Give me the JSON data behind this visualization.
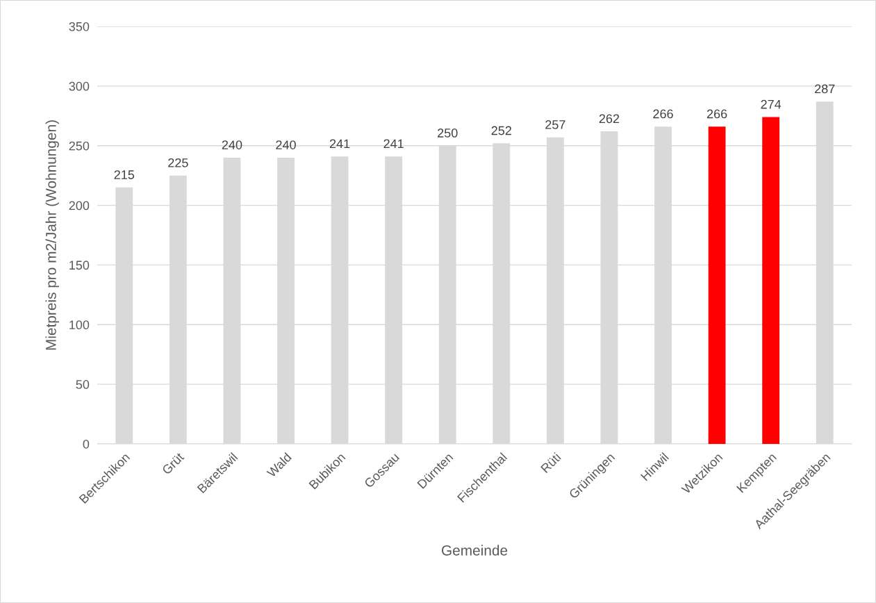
{
  "chart_data": {
    "type": "bar",
    "xlabel": "Gemeinde",
    "ylabel": "Mietpreis pro m2/Jahr (Wohnungen)",
    "categories": [
      "Bertschikon",
      "Grüt",
      "Bäretswil",
      "Wald",
      "Bubikon",
      "Gossau",
      "Dürnten",
      "Fischenthal",
      "Rüti",
      "Grüningen",
      "Hinwil",
      "Wetzikon",
      "Kempten",
      "Aathal-Seegräben"
    ],
    "values": [
      215,
      225,
      240,
      240,
      241,
      241,
      250,
      252,
      257,
      262,
      266,
      266,
      274,
      287
    ],
    "colors": [
      "#d9d9d9",
      "#d9d9d9",
      "#d9d9d9",
      "#d9d9d9",
      "#d9d9d9",
      "#d9d9d9",
      "#d9d9d9",
      "#d9d9d9",
      "#d9d9d9",
      "#d9d9d9",
      "#d9d9d9",
      "#ff0000",
      "#ff0000",
      "#d9d9d9"
    ],
    "ylim": [
      0,
      350
    ],
    "yticks": [
      0,
      50,
      100,
      150,
      200,
      250,
      300,
      350
    ],
    "grid": "y",
    "data_labels": true,
    "legend": false
  }
}
